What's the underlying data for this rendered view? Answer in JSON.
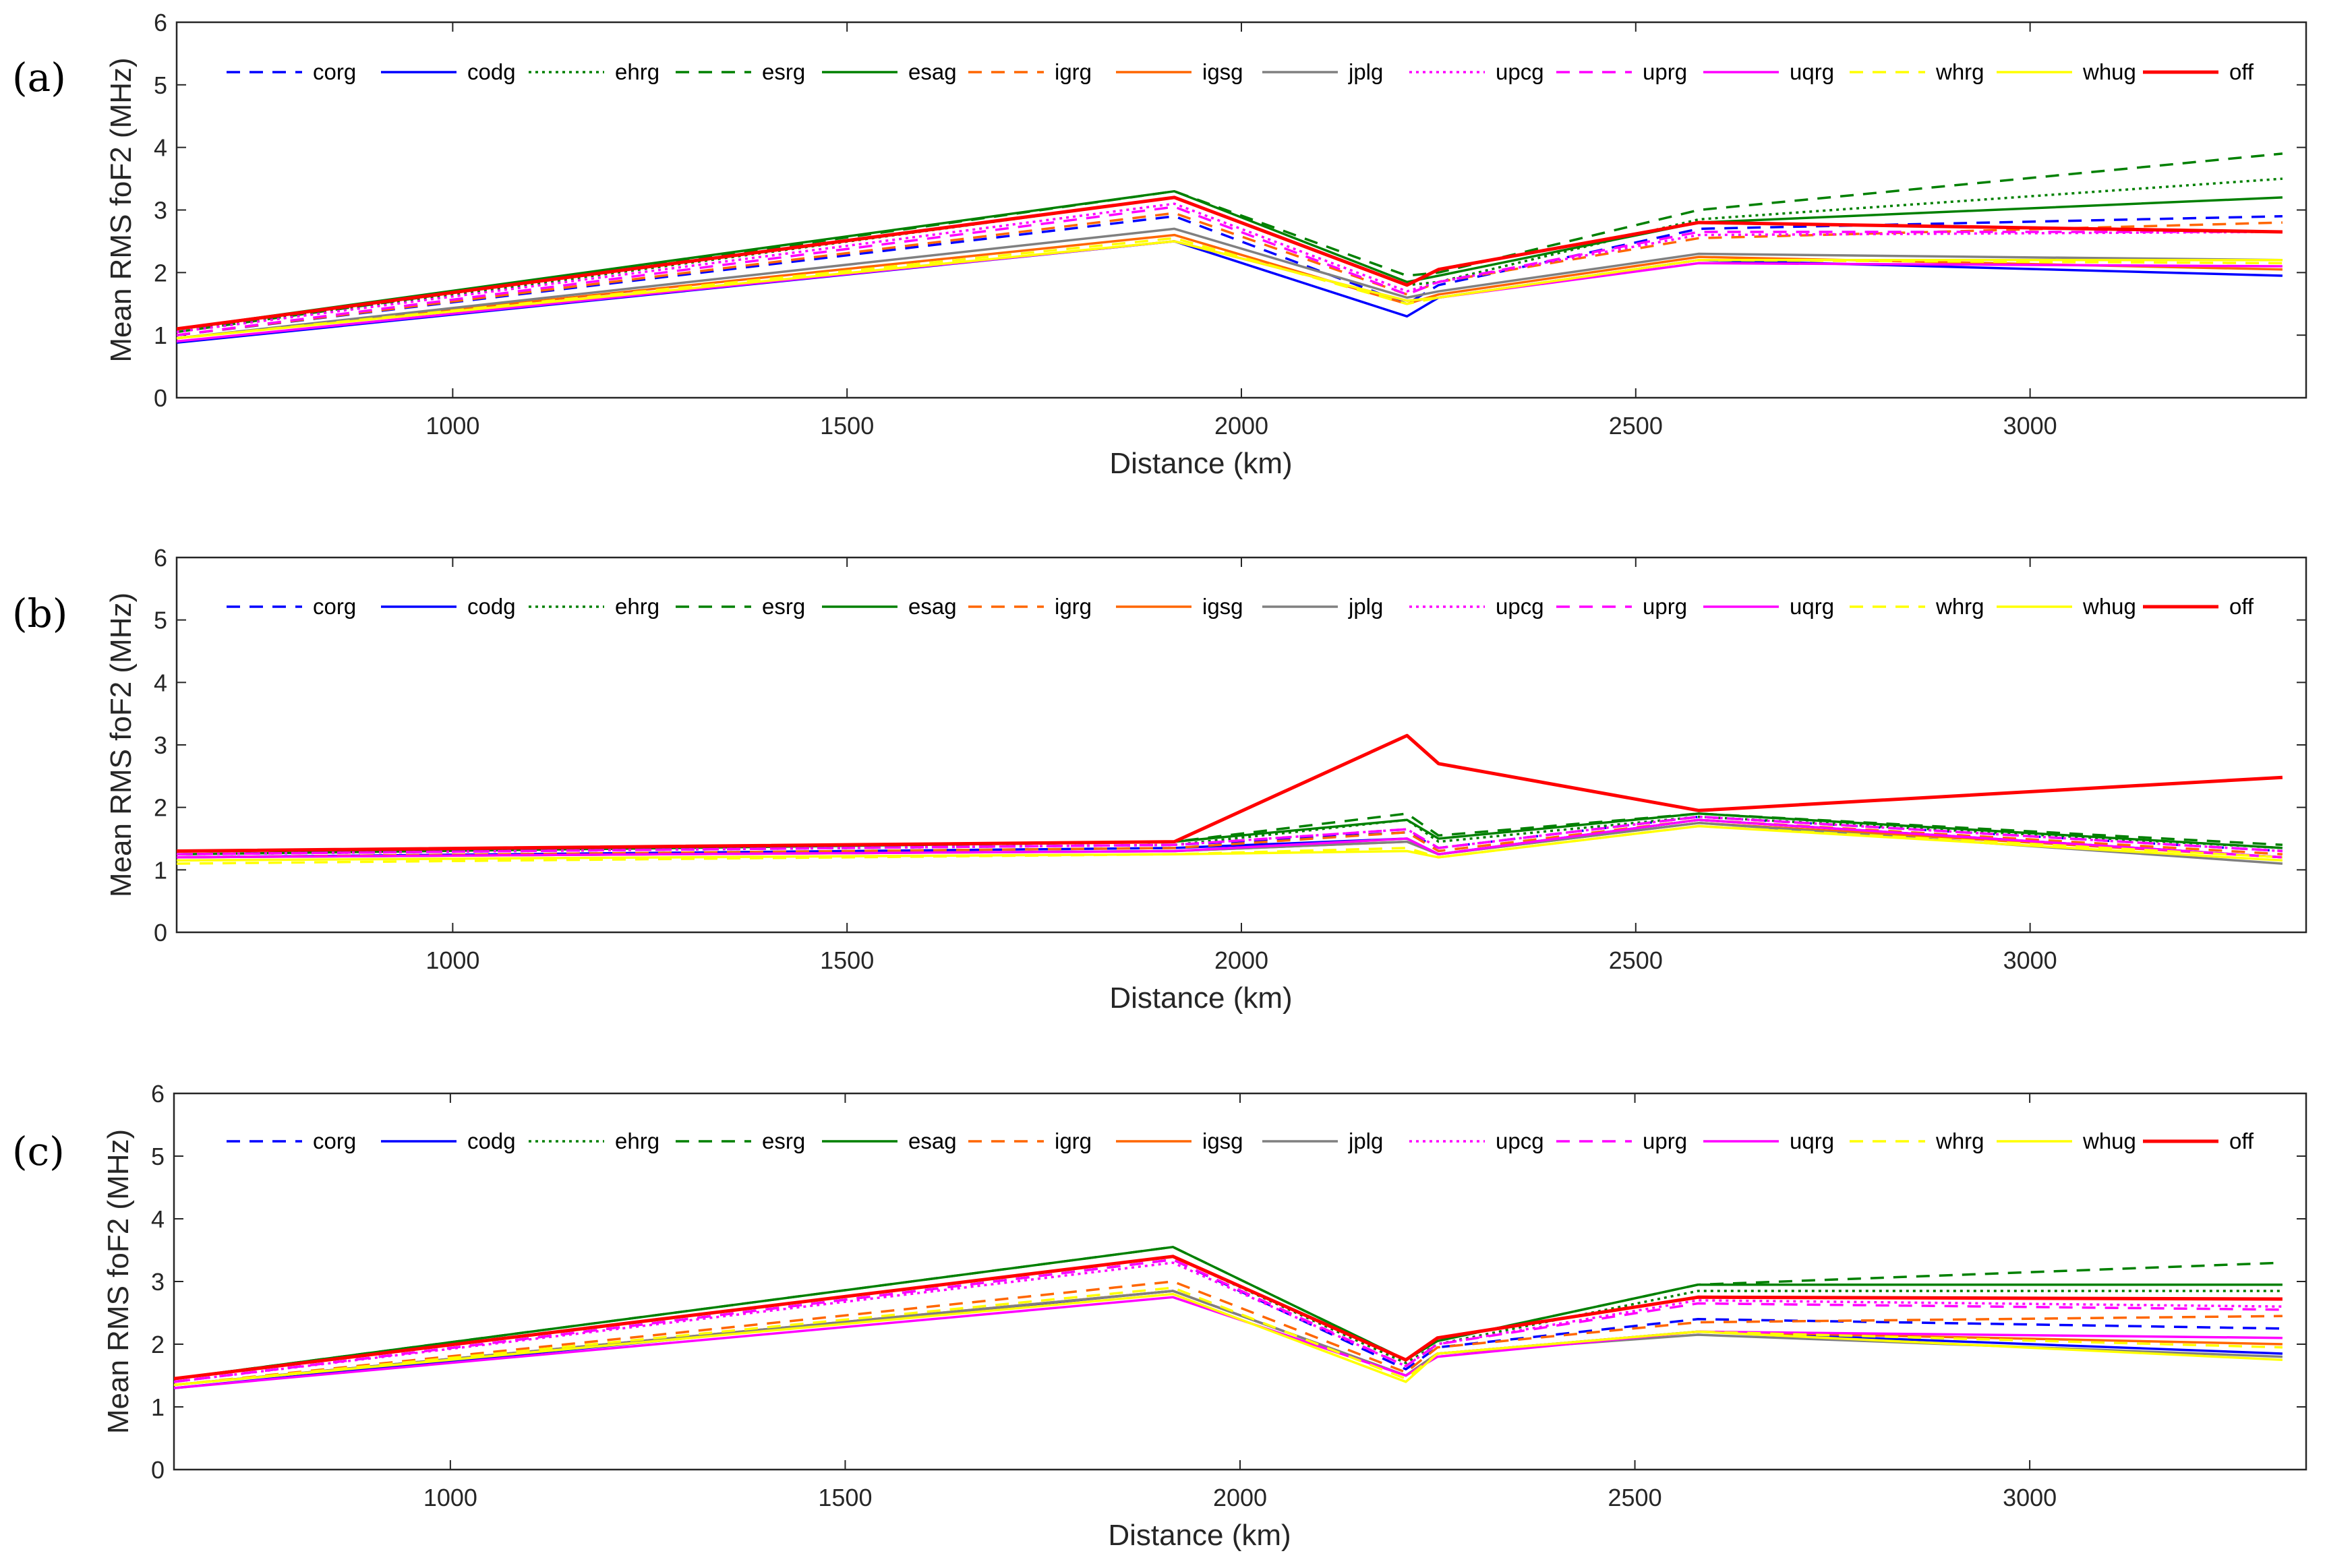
{
  "chart_data": [
    {
      "type": "line",
      "panel_label": "(a)",
      "xlabel": "Distance (km)",
      "ylabel": "Mean RMS foF2 (MHz)",
      "xlim": [
        650,
        3350
      ],
      "ylim": [
        0,
        6
      ],
      "xticks": [
        1000,
        1500,
        2000,
        2500,
        3000
      ],
      "yticks": [
        0,
        1,
        2,
        3,
        4,
        5,
        6
      ],
      "grid": false,
      "legend_position": "top, single row",
      "x": [
        650,
        1915,
        2210,
        2250,
        2580,
        3320
      ],
      "series": [
        {
          "name": "corg",
          "color": "#0000ff",
          "dash": "dashed",
          "values": [
            1.0,
            2.9,
            1.5,
            1.8,
            2.7,
            2.9
          ]
        },
        {
          "name": "codg",
          "color": "#0000ff",
          "dash": "solid",
          "values": [
            0.88,
            2.5,
            1.3,
            1.6,
            2.2,
            1.95
          ]
        },
        {
          "name": "ehrg",
          "color": "#008000",
          "dash": "dotted",
          "values": [
            1.05,
            3.2,
            1.8,
            1.85,
            2.85,
            3.5
          ]
        },
        {
          "name": "esrg",
          "color": "#008000",
          "dash": "dashed",
          "values": [
            1.05,
            3.3,
            1.95,
            2.0,
            3.0,
            3.9
          ]
        },
        {
          "name": "esag",
          "color": "#008000",
          "dash": "solid",
          "values": [
            1.1,
            3.3,
            1.85,
            1.95,
            2.8,
            3.2
          ]
        },
        {
          "name": "igrg",
          "color": "#ff6600",
          "dash": "dashed",
          "values": [
            1.0,
            2.95,
            1.65,
            1.85,
            2.55,
            2.8
          ]
        },
        {
          "name": "igsg",
          "color": "#ff6600",
          "dash": "solid",
          "values": [
            0.95,
            2.6,
            1.5,
            1.65,
            2.25,
            2.05
          ]
        },
        {
          "name": "jplg",
          "color": "#808080",
          "dash": "solid",
          "values": [
            0.95,
            2.7,
            1.6,
            1.7,
            2.3,
            2.2
          ]
        },
        {
          "name": "upcg",
          "color": "#ff00ff",
          "dash": "dotted",
          "values": [
            1.05,
            3.1,
            1.7,
            1.85,
            2.6,
            2.65
          ]
        },
        {
          "name": "uprg",
          "color": "#ff00ff",
          "dash": "dashed",
          "values": [
            1.0,
            3.05,
            1.65,
            1.85,
            2.65,
            2.65
          ]
        },
        {
          "name": "uqrg",
          "color": "#ff00ff",
          "dash": "solid",
          "values": [
            0.9,
            2.5,
            1.55,
            1.6,
            2.15,
            2.1
          ]
        },
        {
          "name": "whrg",
          "color": "#ffff00",
          "dash": "dashed",
          "values": [
            0.95,
            2.55,
            1.5,
            1.6,
            2.2,
            2.15
          ]
        },
        {
          "name": "whug",
          "color": "#ffff00",
          "dash": "solid",
          "values": [
            0.95,
            2.5,
            1.55,
            1.6,
            2.2,
            2.2
          ]
        },
        {
          "name": "off",
          "color": "#ff0000",
          "dash": "solid",
          "values": [
            1.1,
            3.2,
            1.8,
            2.05,
            2.8,
            2.65
          ]
        }
      ]
    },
    {
      "type": "line",
      "panel_label": "(b)",
      "xlabel": "Distance (km)",
      "ylabel": "Mean RMS foF2 (MHz)",
      "xlim": [
        650,
        3350
      ],
      "ylim": [
        0,
        6
      ],
      "xticks": [
        1000,
        1500,
        2000,
        2500,
        3000
      ],
      "yticks": [
        0,
        1,
        2,
        3,
        4,
        5,
        6
      ],
      "grid": false,
      "legend_position": "top, single row",
      "x": [
        650,
        1915,
        2210,
        2250,
        2580,
        3320
      ],
      "series": [
        {
          "name": "corg",
          "color": "#0000ff",
          "dash": "dashed",
          "values": [
            1.25,
            1.4,
            1.6,
            1.35,
            1.85,
            1.3
          ]
        },
        {
          "name": "codg",
          "color": "#0000ff",
          "dash": "solid",
          "values": [
            1.2,
            1.35,
            1.5,
            1.25,
            1.8,
            1.2
          ]
        },
        {
          "name": "ehrg",
          "color": "#008000",
          "dash": "dotted",
          "values": [
            1.25,
            1.4,
            1.8,
            1.45,
            1.85,
            1.35
          ]
        },
        {
          "name": "esrg",
          "color": "#008000",
          "dash": "dashed",
          "values": [
            1.25,
            1.45,
            1.9,
            1.55,
            1.9,
            1.4
          ]
        },
        {
          "name": "esag",
          "color": "#008000",
          "dash": "solid",
          "values": [
            1.25,
            1.45,
            1.8,
            1.5,
            1.9,
            1.35
          ]
        },
        {
          "name": "igrg",
          "color": "#ff6600",
          "dash": "dashed",
          "values": [
            1.2,
            1.35,
            1.6,
            1.3,
            1.8,
            1.25
          ]
        },
        {
          "name": "igsg",
          "color": "#ff6600",
          "dash": "solid",
          "values": [
            1.2,
            1.3,
            1.45,
            1.25,
            1.75,
            1.2
          ]
        },
        {
          "name": "jplg",
          "color": "#808080",
          "dash": "solid",
          "values": [
            1.2,
            1.3,
            1.45,
            1.25,
            1.75,
            1.1
          ]
        },
        {
          "name": "upcg",
          "color": "#ff00ff",
          "dash": "dotted",
          "values": [
            1.25,
            1.4,
            1.65,
            1.35,
            1.85,
            1.3
          ]
        },
        {
          "name": "uprg",
          "color": "#ff00ff",
          "dash": "dashed",
          "values": [
            1.25,
            1.4,
            1.65,
            1.35,
            1.85,
            1.3
          ]
        },
        {
          "name": "uqrg",
          "color": "#ff00ff",
          "dash": "solid",
          "values": [
            1.2,
            1.3,
            1.5,
            1.25,
            1.8,
            1.2
          ]
        },
        {
          "name": "whrg",
          "color": "#ffff00",
          "dash": "dashed",
          "values": [
            1.1,
            1.25,
            1.35,
            1.2,
            1.7,
            1.2
          ]
        },
        {
          "name": "whug",
          "color": "#ffff00",
          "dash": "solid",
          "values": [
            1.15,
            1.25,
            1.3,
            1.2,
            1.7,
            1.15
          ]
        },
        {
          "name": "off",
          "color": "#ff0000",
          "dash": "solid",
          "values": [
            1.3,
            1.45,
            3.15,
            2.7,
            1.95,
            2.48
          ]
        }
      ]
    },
    {
      "type": "line",
      "panel_label": "(c)",
      "xlabel": "Distance (km)",
      "ylabel": "Mean RMS foF2 (MHz)",
      "xlim": [
        650,
        3350
      ],
      "ylim": [
        0,
        6
      ],
      "xticks": [
        1000,
        1500,
        2000,
        2500,
        3000
      ],
      "yticks": [
        0,
        1,
        2,
        3,
        4,
        5,
        6
      ],
      "grid": false,
      "legend_position": "top, single row",
      "x": [
        650,
        1915,
        2210,
        2250,
        2580,
        3320
      ],
      "series": [
        {
          "name": "corg",
          "color": "#0000ff",
          "dash": "dashed",
          "values": [
            1.4,
            3.35,
            1.6,
            1.95,
            2.4,
            2.25
          ]
        },
        {
          "name": "codg",
          "color": "#0000ff",
          "dash": "solid",
          "values": [
            1.3,
            2.85,
            1.5,
            1.85,
            2.2,
            1.85
          ]
        },
        {
          "name": "ehrg",
          "color": "#008000",
          "dash": "dotted",
          "values": [
            1.45,
            3.4,
            1.7,
            2.0,
            2.85,
            2.85
          ]
        },
        {
          "name": "esrg",
          "color": "#008000",
          "dash": "dashed",
          "values": [
            1.45,
            3.55,
            1.75,
            2.05,
            2.95,
            3.3
          ]
        },
        {
          "name": "esag",
          "color": "#008000",
          "dash": "solid",
          "values": [
            1.45,
            3.55,
            1.75,
            2.05,
            2.95,
            2.95
          ]
        },
        {
          "name": "igrg",
          "color": "#ff6600",
          "dash": "dashed",
          "values": [
            1.35,
            3.0,
            1.55,
            1.95,
            2.35,
            2.45
          ]
        },
        {
          "name": "igsg",
          "color": "#ff6600",
          "dash": "solid",
          "values": [
            1.35,
            2.85,
            1.5,
            1.85,
            2.2,
            2.0
          ]
        },
        {
          "name": "jplg",
          "color": "#808080",
          "dash": "solid",
          "values": [
            1.35,
            2.85,
            1.5,
            1.85,
            2.15,
            1.8
          ]
        },
        {
          "name": "upcg",
          "color": "#ff00ff",
          "dash": "dotted",
          "values": [
            1.4,
            3.3,
            1.65,
            2.0,
            2.7,
            2.6
          ]
        },
        {
          "name": "uprg",
          "color": "#ff00ff",
          "dash": "dashed",
          "values": [
            1.4,
            3.35,
            1.65,
            2.0,
            2.65,
            2.55
          ]
        },
        {
          "name": "uqrg",
          "color": "#ff00ff",
          "dash": "solid",
          "values": [
            1.3,
            2.75,
            1.5,
            1.8,
            2.2,
            2.1
          ]
        },
        {
          "name": "whrg",
          "color": "#ffff00",
          "dash": "dashed",
          "values": [
            1.35,
            2.9,
            1.45,
            1.85,
            2.2,
            1.95
          ]
        },
        {
          "name": "whug",
          "color": "#ffff00",
          "dash": "solid",
          "values": [
            1.35,
            2.8,
            1.4,
            1.85,
            2.2,
            1.75
          ]
        },
        {
          "name": "off",
          "color": "#ff0000",
          "dash": "solid",
          "values": [
            1.45,
            3.4,
            1.75,
            2.1,
            2.75,
            2.72
          ]
        }
      ]
    }
  ]
}
